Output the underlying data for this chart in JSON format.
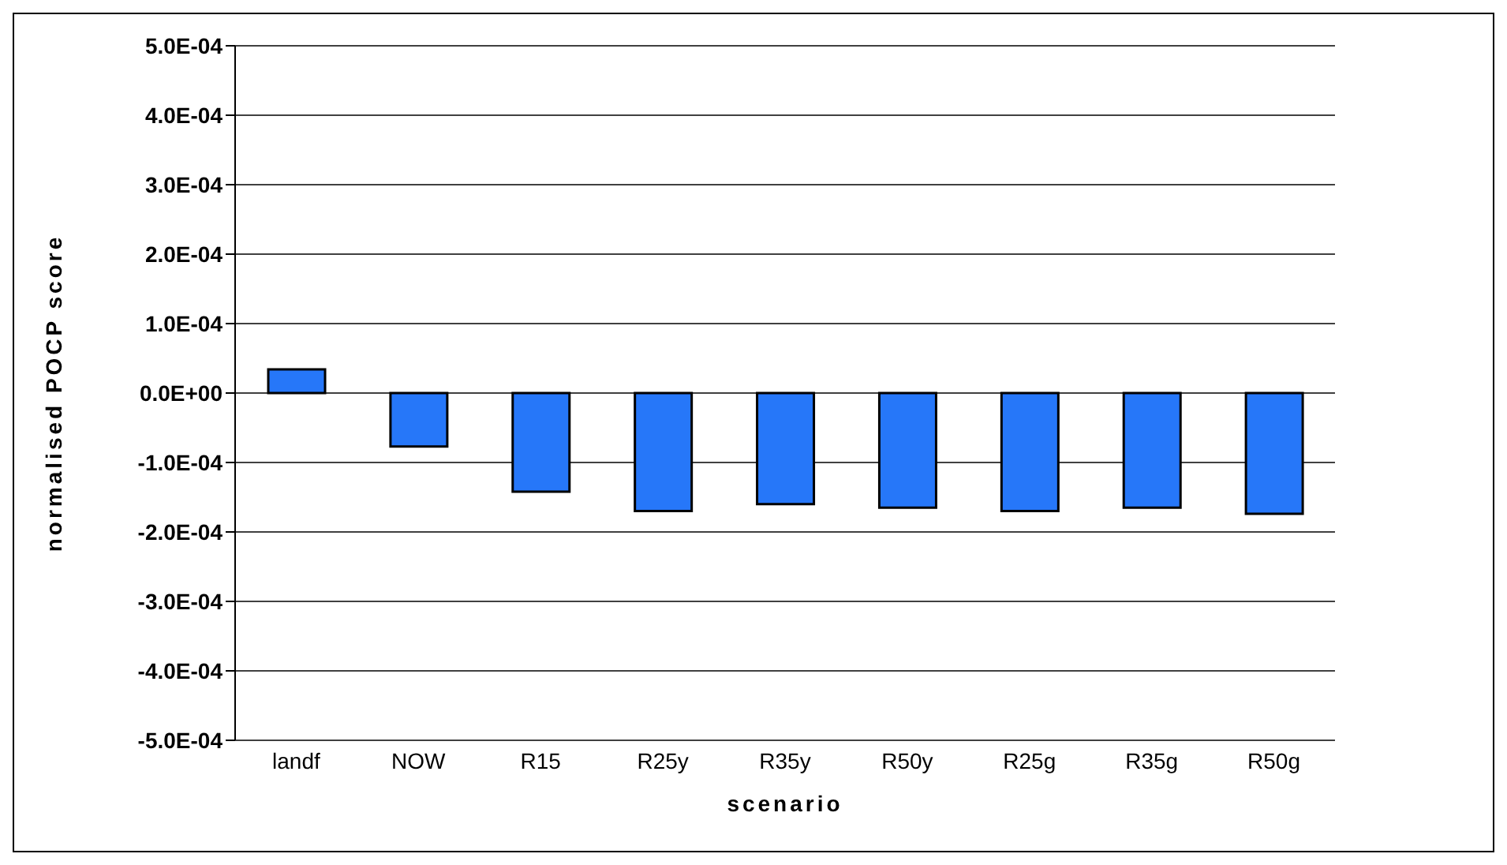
{
  "chart_data": {
    "type": "bar",
    "xlabel": "scenario",
    "ylabel": "normalised POCP score",
    "categories": [
      "landf",
      "NOW",
      "R15",
      "R25y",
      "R35y",
      "R50y",
      "R25g",
      "R35g",
      "R50g"
    ],
    "values": [
      3.4e-05,
      -7.7e-05,
      -0.000142,
      -0.00017,
      -0.00016,
      -0.000165,
      -0.00017,
      -0.000165,
      -0.000174
    ],
    "color": "#2677f9",
    "ylim": [
      -0.0005,
      0.0005
    ],
    "yticks": [
      {
        "value": -0.0005,
        "label": "-5.0E-04"
      },
      {
        "value": -0.0004,
        "label": "-4.0E-04"
      },
      {
        "value": -0.0003,
        "label": "-3.0E-04"
      },
      {
        "value": -0.0002,
        "label": "-2.0E-04"
      },
      {
        "value": -0.0001,
        "label": "-1.0E-04"
      },
      {
        "value": 0,
        "label": "0.0E+00"
      },
      {
        "value": 0.0001,
        "label": "1.0E-04"
      },
      {
        "value": 0.0002,
        "label": "2.0E-04"
      },
      {
        "value": 0.0003,
        "label": "3.0E-04"
      },
      {
        "value": 0.0004,
        "label": "4.0E-04"
      },
      {
        "value": 0.0005,
        "label": "5.0E-04"
      }
    ],
    "grid": "y"
  }
}
